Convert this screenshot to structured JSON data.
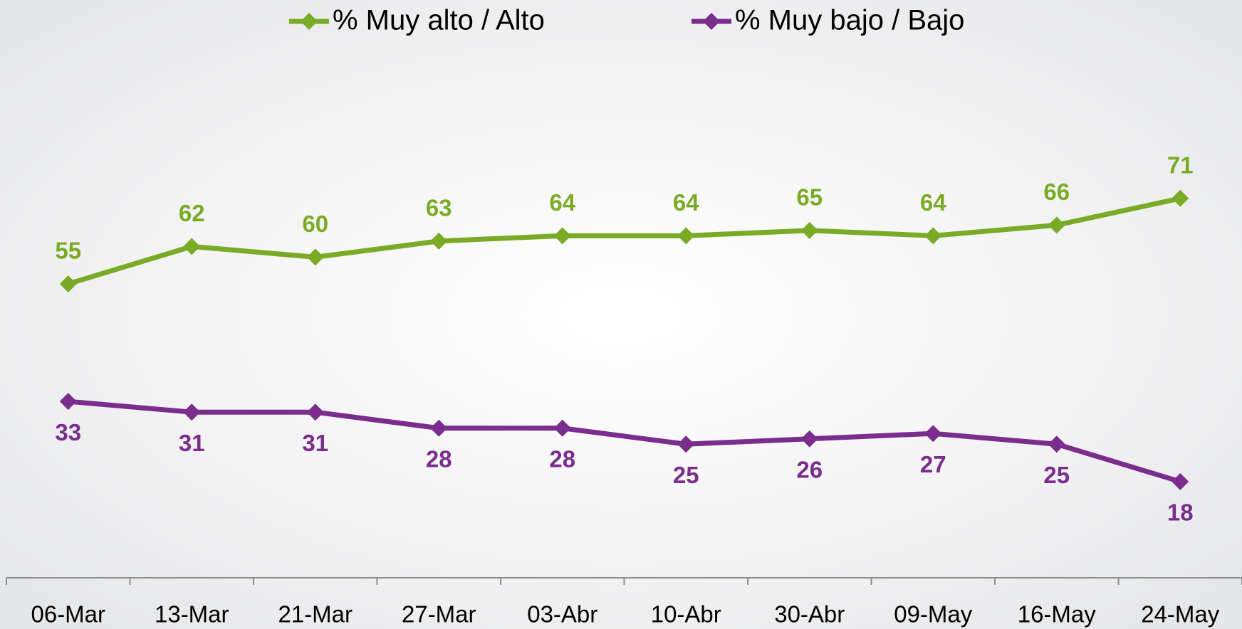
{
  "chart_data": {
    "type": "line",
    "categories": [
      "06-Mar",
      "13-Mar",
      "21-Mar",
      "27-Mar",
      "03-Abr",
      "10-Abr",
      "30-Abr",
      "09-May",
      "16-May",
      "24-May"
    ],
    "series": [
      {
        "name": "% Muy alto / Alto",
        "color": "#7aab26",
        "values": [
          55,
          62,
          60,
          63,
          64,
          64,
          65,
          64,
          66,
          71
        ]
      },
      {
        "name": "% Muy bajo / Bajo",
        "color": "#7b2d8e",
        "values": [
          33,
          31,
          31,
          28,
          28,
          25,
          26,
          27,
          25,
          18
        ]
      }
    ],
    "ylim": [
      0,
      100
    ],
    "legend": "top",
    "grid": false,
    "data_labels": true
  }
}
